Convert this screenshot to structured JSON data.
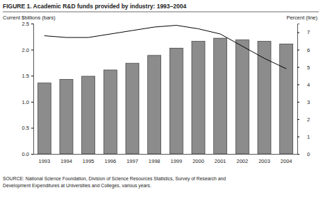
{
  "chart_data": {
    "type": "bar",
    "title": "FIGURE 1. Academic R&D funds provided by industry: 1993–2004",
    "y_label": "Current $billions (bars)",
    "y2_label": "Percent (line)",
    "source": [
      "SOURCE: National Science Foundation, Division of Science Resources Statistics, Survey of Research and",
      "Development Expenditures at Universities and Colleges, various years."
    ],
    "categories": [
      "1993",
      "1994",
      "1995",
      "1996",
      "1997",
      "1998",
      "1999",
      "2000",
      "2001",
      "2002",
      "2003",
      "2004"
    ],
    "series": [
      {
        "type": "bar",
        "color": "#8c8c8c",
        "values": [
          1.36,
          1.43,
          1.49,
          1.61,
          1.74,
          1.89,
          2.03,
          2.16,
          2.22,
          2.19,
          2.16,
          2.11
        ]
      },
      {
        "type": "line",
        "color": "#000000",
        "axis": "y2",
        "values": [
          6.8,
          6.7,
          6.7,
          6.9,
          7.1,
          7.3,
          7.4,
          7.2,
          6.9,
          6.2,
          5.5,
          4.9
        ]
      }
    ],
    "ylim": [
      0,
      2.5
    ],
    "yticks": [
      {
        "value": 0,
        "label": "0.0"
      },
      0.5,
      {
        "value": 1,
        "label": "1.0"
      },
      1.5,
      {
        "value": 2,
        "label": "2.0"
      },
      2.5
    ],
    "y2lim": [
      0,
      7.5
    ],
    "y2ticks": [
      0,
      1,
      2,
      3,
      4,
      5,
      6,
      7
    ]
  }
}
